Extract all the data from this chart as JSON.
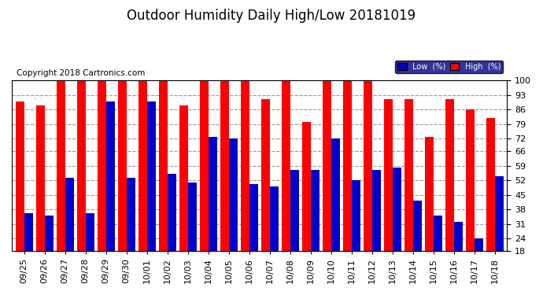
{
  "title": "Outdoor Humidity Daily High/Low 20181019",
  "copyright": "Copyright 2018 Cartronics.com",
  "legend_low": "Low  (%)",
  "legend_high": "High  (%)",
  "categories": [
    "09/25",
    "09/26",
    "09/27",
    "09/28",
    "09/29",
    "09/30",
    "10/01",
    "10/02",
    "10/03",
    "10/04",
    "10/05",
    "10/06",
    "10/07",
    "10/08",
    "10/09",
    "10/10",
    "10/11",
    "10/12",
    "10/13",
    "10/14",
    "10/15",
    "10/16",
    "10/17",
    "10/18"
  ],
  "high": [
    90,
    88,
    100,
    100,
    100,
    100,
    100,
    100,
    88,
    100,
    100,
    100,
    91,
    100,
    80,
    100,
    100,
    100,
    91,
    91,
    73,
    91,
    86,
    82
  ],
  "low": [
    36,
    35,
    53,
    36,
    90,
    53,
    90,
    55,
    51,
    73,
    72,
    50,
    49,
    57,
    57,
    72,
    52,
    57,
    58,
    42,
    35,
    32,
    24,
    54
  ],
  "ylim": [
    18,
    100
  ],
  "yticks": [
    18,
    24,
    31,
    38,
    45,
    52,
    59,
    66,
    72,
    79,
    86,
    93,
    100
  ],
  "bar_color_high": "#ff0000",
  "bar_color_low": "#0000cc",
  "background_color": "#ffffff",
  "grid_color": "#999999",
  "title_fontsize": 12,
  "copyright_fontsize": 7.5,
  "tick_fontsize": 8,
  "legend_facecolor": "#000080",
  "legend_fontsize": 7
}
